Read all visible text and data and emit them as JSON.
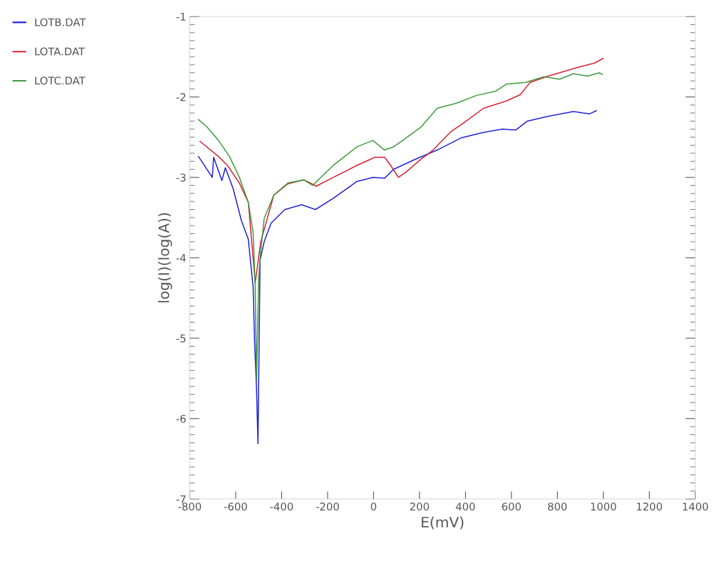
{
  "chart_data": {
    "type": "line",
    "xlabel": "E(mV)",
    "ylabel": "log(I)(log(A))",
    "xlim": [
      -800,
      1400
    ],
    "xticks": [
      -800,
      -600,
      -400,
      -200,
      0,
      200,
      400,
      600,
      800,
      1000,
      1200,
      1400
    ],
    "ylim": [
      -7,
      -1
    ],
    "yticks": [
      -7,
      -6,
      -5,
      -4,
      -3,
      -2,
      -1
    ],
    "grid": false,
    "legend": "left",
    "marker": "none",
    "line_style": "solid",
    "series": [
      {
        "name": "LOTB.DAT",
        "color": "#1f1fd6",
        "x": [
          -762,
          -702,
          -696,
          -660,
          -645,
          -611,
          -575,
          -545,
          -524,
          -518,
          -509,
          -503,
          -494,
          -476,
          -446,
          -386,
          -313,
          -253,
          -175,
          -72,
          -3,
          48,
          87,
          178,
          277,
          380,
          479,
          560,
          620,
          669,
          759,
          870,
          940,
          970
        ],
        "values": [
          -2.74,
          -3.0,
          -2.75,
          -3.04,
          -2.88,
          -3.14,
          -3.54,
          -3.77,
          -4.37,
          -5.03,
          -5.66,
          -6.31,
          -4.03,
          -3.8,
          -3.57,
          -3.4,
          -3.34,
          -3.4,
          -3.26,
          -3.05,
          -3.0,
          -3.01,
          -2.9,
          -2.78,
          -2.66,
          -2.51,
          -2.44,
          -2.4,
          -2.41,
          -2.3,
          -2.24,
          -2.18,
          -2.21,
          -2.17
        ]
      },
      {
        "name": "LOTA.DAT",
        "color": "#d62030",
        "x": [
          -756,
          -675,
          -636,
          -584,
          -545,
          -515,
          -491,
          -434,
          -373,
          -304,
          -274,
          -250,
          -175,
          -72,
          6,
          48,
          72,
          108,
          139,
          208,
          259,
          337,
          398,
          479,
          578,
          639,
          681,
          750,
          831,
          892,
          961,
          1000
        ],
        "values": [
          -2.55,
          -2.74,
          -2.85,
          -3.07,
          -3.31,
          -4.31,
          -3.8,
          -3.22,
          -3.08,
          -3.03,
          -3.07,
          -3.11,
          -3.0,
          -2.85,
          -2.75,
          -2.75,
          -2.84,
          -3.0,
          -2.94,
          -2.77,
          -2.66,
          -2.43,
          -2.31,
          -2.14,
          -2.05,
          -1.97,
          -1.82,
          -1.75,
          -1.68,
          -1.63,
          -1.58,
          -1.52
        ]
      },
      {
        "name": "LOTC.DAT",
        "color": "#3a9a3a",
        "x": [
          -762,
          -726,
          -675,
          -627,
          -584,
          -545,
          -524,
          -515,
          -509,
          -500,
          -491,
          -476,
          -434,
          -373,
          -304,
          -265,
          -175,
          -72,
          -3,
          48,
          87,
          127,
          208,
          277,
          358,
          449,
          530,
          578,
          660,
          741,
          810,
          870,
          931,
          982,
          997
        ],
        "values": [
          -2.28,
          -2.37,
          -2.54,
          -2.74,
          -3.0,
          -3.31,
          -3.69,
          -4.37,
          -5.52,
          -4.25,
          -3.91,
          -3.51,
          -3.22,
          -3.07,
          -3.03,
          -3.1,
          -2.85,
          -2.62,
          -2.54,
          -2.66,
          -2.62,
          -2.54,
          -2.37,
          -2.14,
          -2.08,
          -1.98,
          -1.93,
          -1.84,
          -1.82,
          -1.75,
          -1.78,
          -1.71,
          -1.74,
          -1.7,
          -1.72
        ]
      }
    ]
  }
}
